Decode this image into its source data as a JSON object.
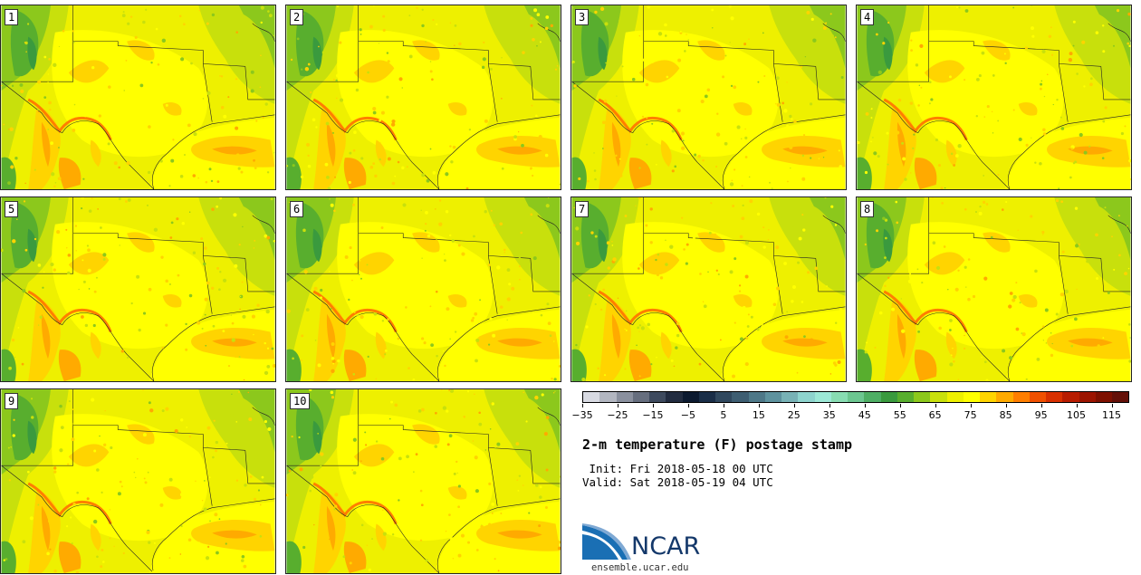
{
  "panels": [
    {
      "label": "1"
    },
    {
      "label": "2"
    },
    {
      "label": "3"
    },
    {
      "label": "4"
    },
    {
      "label": "5"
    },
    {
      "label": "6"
    },
    {
      "label": "7"
    },
    {
      "label": "8"
    },
    {
      "label": "9"
    },
    {
      "label": "10"
    }
  ],
  "colorbar": {
    "colors": [
      "#d8dae2",
      "#b2b6c0",
      "#8a909e",
      "#666e7e",
      "#3e4a5e",
      "#222c40",
      "#0c1a30",
      "#1a2e48",
      "#30485e",
      "#3e5e72",
      "#4e7888",
      "#5e929e",
      "#78b2b6",
      "#8ed4ce",
      "#9ce8d6",
      "#88dcb2",
      "#6cc690",
      "#4eae64",
      "#3a9a3e",
      "#58ae2e",
      "#8cc81c",
      "#c8e00c",
      "#eef000",
      "#ffff00",
      "#ffd400",
      "#ffaa00",
      "#ff7e00",
      "#f05000",
      "#d83000",
      "#b81c00",
      "#9c1400",
      "#7e1000",
      "#641008"
    ],
    "tick_labels": [
      "−35",
      "−25",
      "−15",
      "−5",
      "5",
      "15",
      "25",
      "35",
      "45",
      "55",
      "65",
      "75",
      "85",
      "95",
      "105",
      "115"
    ],
    "min": -35,
    "max": 120
  },
  "title": "2-m temperature (F) postage stamp",
  "init_line": " Init: Fri 2018-05-18 00 UTC",
  "valid_line": "Valid: Sat 2018-05-19 04 UTC",
  "logo": {
    "text": "NCAR",
    "url": "ensemble.ucar.edu",
    "colors": {
      "blue": "#1a6fb4",
      "navy": "#14386a"
    }
  },
  "map_colors": {
    "yellow": "#ffff00",
    "yellowgreen": "#eef000",
    "lime": "#c8e00c",
    "green": "#8cc81c",
    "darkgreen": "#58ae2e",
    "forest": "#3a9a3e",
    "gold": "#ffd400",
    "orange": "#ffaa00",
    "red": "#ff7e00",
    "teal": "#6cc690"
  }
}
